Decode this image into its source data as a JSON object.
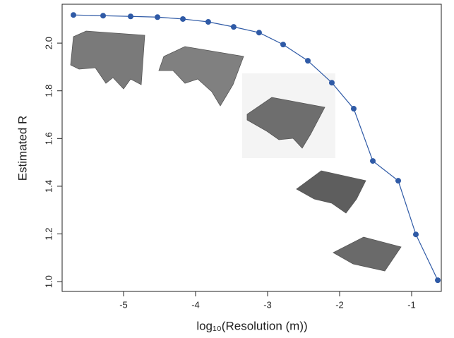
{
  "chart_data": {
    "type": "line",
    "x_label": "log₁₀(Resolution (m))",
    "y_label": "Estimated R",
    "series": [
      {
        "color": "#2f5aa6",
        "x": [
          -5.696,
          -5.284,
          -4.902,
          -4.529,
          -4.176,
          -3.824,
          -3.471,
          -3.118,
          -2.784,
          -2.441,
          -2.108,
          -1.804,
          -1.539,
          -1.186,
          -0.941,
          -0.637
        ],
        "values": [
          2.118,
          2.115,
          2.112,
          2.109,
          2.101,
          2.089,
          2.068,
          2.044,
          1.994,
          1.926,
          1.834,
          1.725,
          1.506,
          1.423,
          1.198,
          1.006
        ]
      }
    ],
    "xlim": [
      -5.853,
      -0.588
    ],
    "xticks": [
      -5,
      -4,
      -3,
      -2,
      -1
    ],
    "ylim": [
      0.959,
      2.163
    ],
    "yticks": [
      {
        "value": 1,
        "label": "1.0"
      },
      1.2,
      1.4,
      1.6,
      1.8,
      {
        "value": 2,
        "label": "2.0"
      }
    ]
  }
}
